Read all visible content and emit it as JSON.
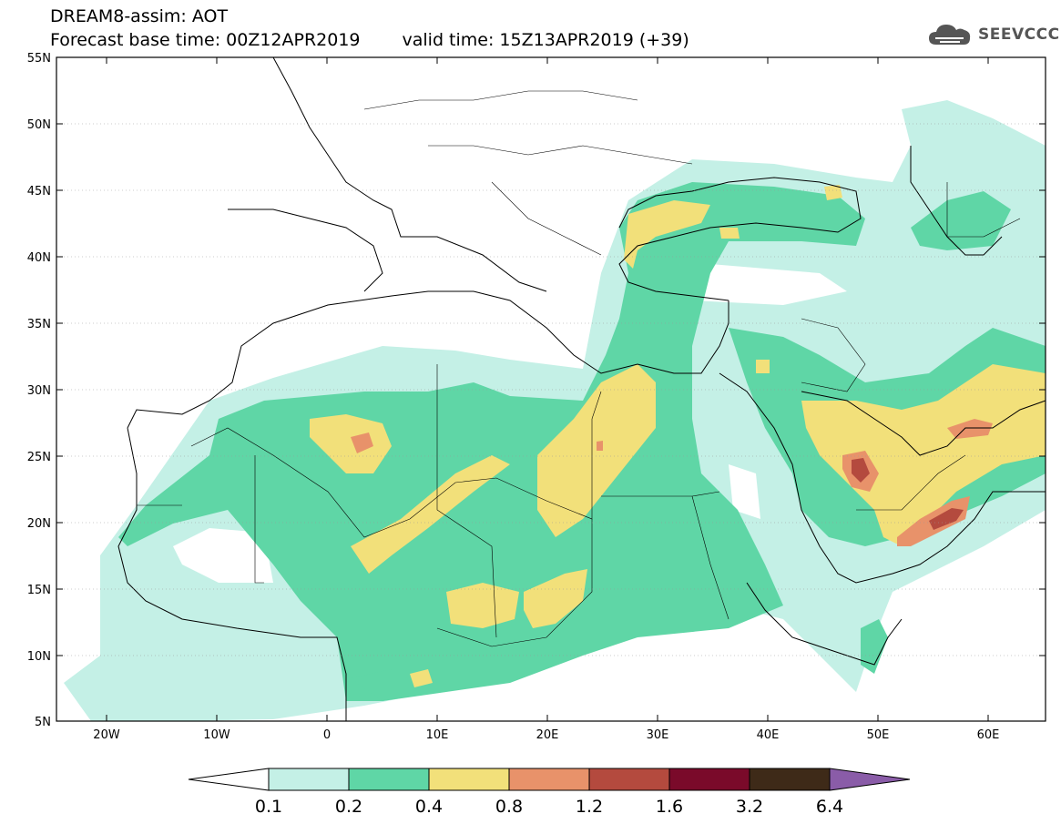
{
  "header": {
    "line1": "DREAM8-assim: AOT",
    "base_time": "Forecast base time: 00Z12APR2019",
    "valid_time": "valid time: 15Z13APR2019 (+39)"
  },
  "logo": {
    "text": "SEEVCCC",
    "icon": "cloud-icon"
  },
  "map": {
    "lat_ticks": [
      "55N",
      "50N",
      "45N",
      "40N",
      "35N",
      "30N",
      "25N",
      "20N",
      "15N",
      "10N",
      "5N"
    ],
    "lon_ticks": [
      "20W",
      "10W",
      "0",
      "10E",
      "20E",
      "30E",
      "40E",
      "50E",
      "60E"
    ],
    "lat_range": [
      5,
      55
    ],
    "lon_range": [
      -25,
      65
    ]
  },
  "colorbar": {
    "labels": [
      "0.1",
      "0.2",
      "0.4",
      "0.8",
      "1.2",
      "1.6",
      "3.2",
      "6.4"
    ],
    "colors": [
      "#ffffff",
      "#c4f0e6",
      "#5fd6a6",
      "#f2e07a",
      "#e8926a",
      "#b44a3e",
      "#7a0a2a",
      "#3e2a18",
      "#8a5ca8"
    ]
  }
}
